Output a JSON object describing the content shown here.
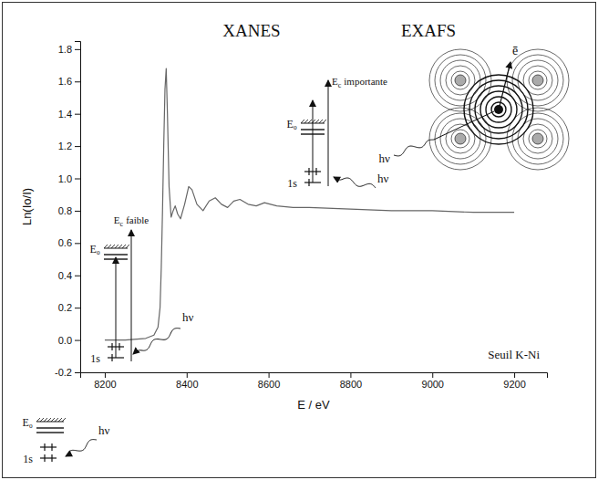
{
  "chart_data": {
    "type": "line",
    "x_label": "E / eV",
    "y_label": "Ln(Io/I)",
    "x": [
      8200,
      8250,
      8300,
      8320,
      8330,
      8335,
      8338,
      8341,
      8344,
      8347,
      8350,
      8353,
      8357,
      8362,
      8367,
      8372,
      8378,
      8385,
      8395,
      8405,
      8413,
      8425,
      8440,
      8455,
      8470,
      8485,
      8500,
      8515,
      8530,
      8550,
      8570,
      8590,
      8620,
      8660,
      8700,
      8800,
      8900,
      9000,
      9100,
      9200
    ],
    "values": [
      0,
      0,
      0.01,
      0.03,
      0.08,
      0.2,
      0.45,
      0.8,
      1.2,
      1.55,
      1.68,
      1.4,
      0.95,
      0.76,
      0.8,
      0.83,
      0.78,
      0.75,
      0.84,
      0.95,
      0.93,
      0.84,
      0.8,
      0.86,
      0.88,
      0.84,
      0.82,
      0.86,
      0.87,
      0.84,
      0.83,
      0.85,
      0.83,
      0.82,
      0.82,
      0.81,
      0.8,
      0.8,
      0.79,
      0.79
    ],
    "color": "#666666",
    "xlim": [
      8140,
      9280
    ],
    "ylim": [
      -0.2,
      1.85
    ],
    "xticks": [
      8200,
      8400,
      8600,
      8800,
      9000,
      9200
    ],
    "yticks": [
      -0.2,
      {
        "value": 0,
        "label": "0.0"
      },
      0.2,
      0.4,
      0.6,
      0.8,
      {
        "value": 1,
        "label": "1.0"
      },
      1.2,
      1.4,
      1.6,
      1.8
    ],
    "grid": false,
    "annotations": {
      "regions": [
        "XANES",
        "EXAFS"
      ],
      "edge": "Seuil K-Ni",
      "diagrams": [
        {
          "levels": [
            "E₀",
            "1s"
          ],
          "photon": "hν"
        },
        {
          "levels": [
            "E₀",
            "1s"
          ],
          "photon": "hν",
          "kinetic": {
            "symbol": "E",
            "index": "c",
            "word": "faible"
          }
        },
        {
          "levels": [
            "E₀",
            "1s"
          ],
          "photon": "hν",
          "kinetic": {
            "symbol": "E",
            "index": "c",
            "word": "importante"
          }
        }
      ],
      "exafs": {
        "electron": "ē",
        "photon": "hν"
      }
    }
  }
}
